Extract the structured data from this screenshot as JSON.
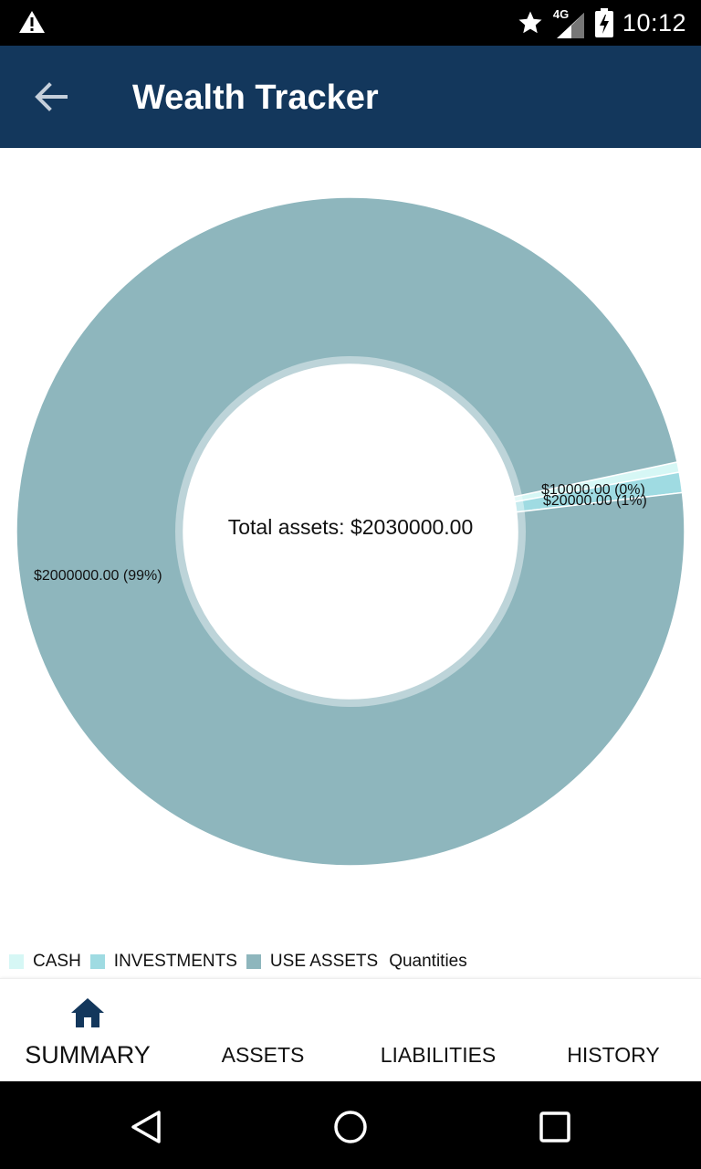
{
  "status_bar": {
    "network": "4G",
    "time": "10:12",
    "icons": [
      "warning-icon",
      "star-icon",
      "signal-icon",
      "battery-charging-icon"
    ]
  },
  "app_bar": {
    "title": "Wealth Tracker",
    "back_icon": "arrow-back-icon"
  },
  "chart_data": {
    "type": "pie",
    "style": "donut",
    "center_text": "Total assets: $2030000.00",
    "series": [
      {
        "name": "CASH",
        "value": 10000,
        "label": "$10000.00 (0%)",
        "color": "#d6f7f5"
      },
      {
        "name": "INVESTMENTS",
        "value": 20000,
        "label": "$20000.00 (1%)",
        "color": "#9fdbe2"
      },
      {
        "name": "USE ASSETS",
        "value": 2000000,
        "label": "$2000000.00 (99%)",
        "color": "#8eb6bd"
      }
    ],
    "legend": {
      "items": [
        "CASH",
        "INVESTMENTS",
        "USE ASSETS"
      ],
      "description": "Quantities",
      "placement": "bottom-left"
    }
  },
  "tabs": [
    {
      "label": "SUMMARY",
      "active": true,
      "icon": "home-icon"
    },
    {
      "label": "ASSETS",
      "active": false
    },
    {
      "label": "LIABILITIES",
      "active": false
    },
    {
      "label": "HISTORY",
      "active": false
    }
  ],
  "nav_bar": {
    "icons": [
      "back-triangle-icon",
      "home-circle-icon",
      "recents-square-icon"
    ]
  }
}
